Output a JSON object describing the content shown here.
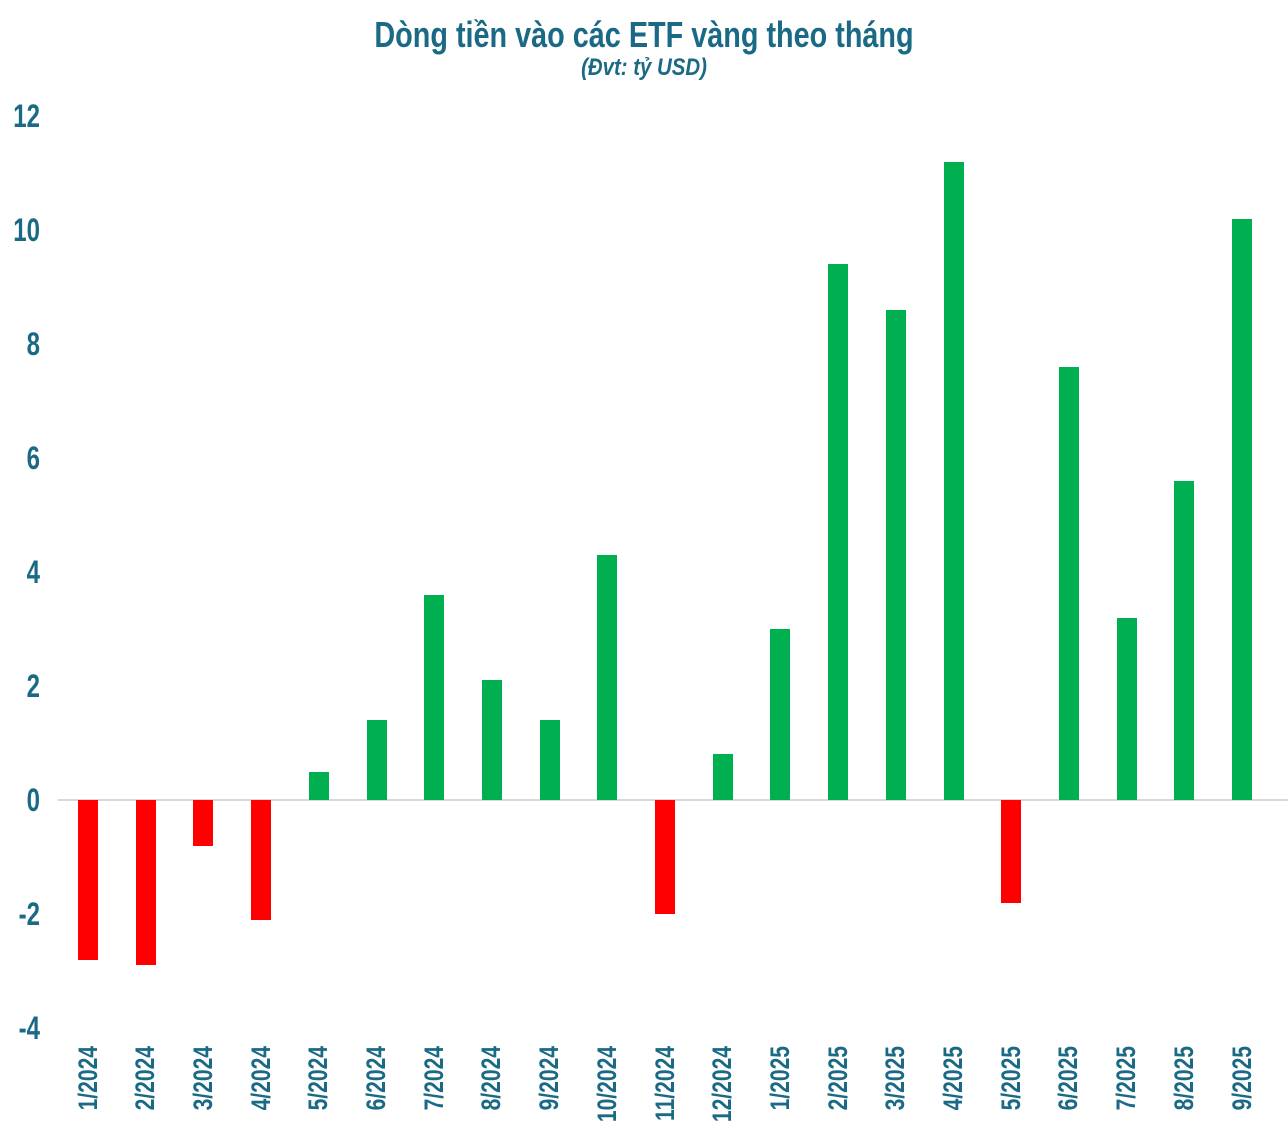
{
  "chart_data": {
    "type": "bar",
    "title": "Dòng tiền vào các ETF vàng theo tháng",
    "subtitle": "(Đvt: tỷ USD)",
    "xlabel": "",
    "ylabel": "",
    "categories": [
      "1/2024",
      "2/2024",
      "3/2024",
      "4/2024",
      "5/2024",
      "6/2024",
      "7/2024",
      "8/2024",
      "9/2024",
      "10/2024",
      "11/2024",
      "12/2024",
      "1/2025",
      "2/2025",
      "3/2025",
      "4/2025",
      "5/2025",
      "6/2025",
      "7/2025",
      "8/2025",
      "9/2025"
    ],
    "values": [
      -2.8,
      -2.9,
      -0.8,
      -2.1,
      0.5,
      1.4,
      3.6,
      2.1,
      1.4,
      4.3,
      -2.0,
      0.8,
      3.0,
      9.4,
      8.6,
      11.2,
      -1.8,
      7.6,
      3.2,
      5.6,
      10.2
    ],
    "y_ticks": [
      12,
      10,
      8,
      6,
      4,
      2,
      0,
      -2,
      -4
    ],
    "ylim": [
      -4,
      12
    ],
    "grid": false,
    "legend_position": "none",
    "color_rule": "positive bars green, negative bars red"
  },
  "colors": {
    "positive_bar": "#00B050",
    "negative_bar": "#FF0000",
    "axis_text": "#1A6985",
    "zero_line": "#D9D9D9"
  }
}
